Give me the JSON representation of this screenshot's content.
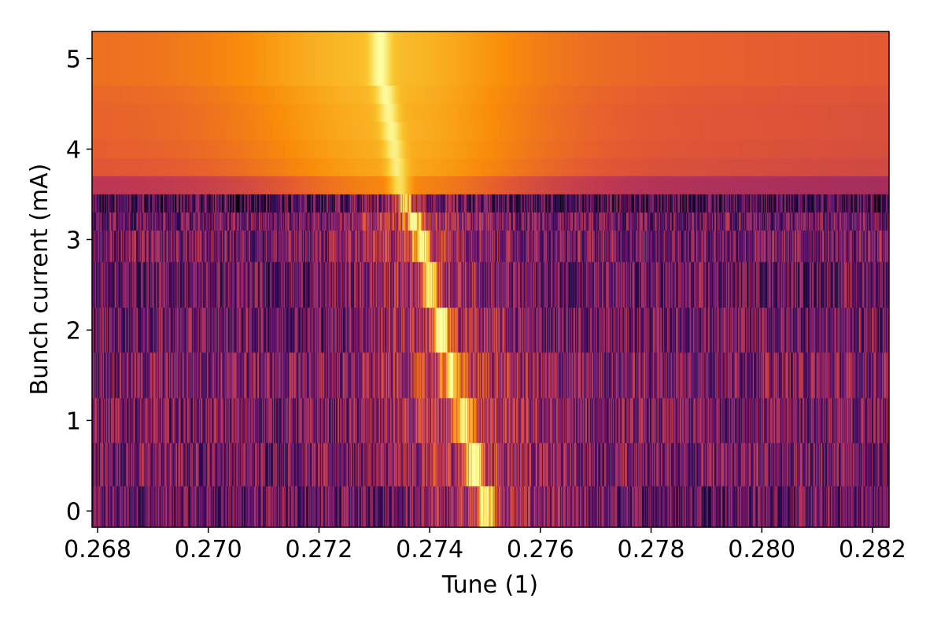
{
  "chart_data": {
    "type": "heatmap",
    "title": "",
    "xlabel": "Tune (1)",
    "ylabel": "Bunch current (mA)",
    "xlim": [
      0.2679,
      0.2823
    ],
    "ylim": [
      -0.18,
      5.3
    ],
    "x_ticks": [
      {
        "value": 0.268,
        "label": "0.268"
      },
      {
        "value": 0.27,
        "label": "0.270"
      },
      {
        "value": 0.272,
        "label": "0.272"
      },
      {
        "value": 0.274,
        "label": "0.274"
      },
      {
        "value": 0.276,
        "label": "0.276"
      },
      {
        "value": 0.278,
        "label": "0.278"
      },
      {
        "value": 0.28,
        "label": "0.280"
      },
      {
        "value": 0.282,
        "label": "0.282"
      }
    ],
    "y_ticks": [
      {
        "value": 0,
        "label": "0"
      },
      {
        "value": 1,
        "label": "1"
      },
      {
        "value": 2,
        "label": "2"
      },
      {
        "value": 3,
        "label": "3"
      },
      {
        "value": 4,
        "label": "4"
      },
      {
        "value": 5,
        "label": "5"
      }
    ],
    "colormap": "inferno",
    "grid": false,
    "rows": [
      {
        "y0": -0.18,
        "y1": 0.27,
        "peak_tune": 0.275,
        "peak_level": 0.97,
        "background_level": 0.3,
        "noise": 0.45
      },
      {
        "y0": 0.27,
        "y1": 0.75,
        "peak_tune": 0.2748,
        "peak_level": 0.95,
        "background_level": 0.34,
        "noise": 0.45
      },
      {
        "y0": 0.75,
        "y1": 1.25,
        "peak_tune": 0.2746,
        "peak_level": 0.9,
        "background_level": 0.34,
        "noise": 0.45
      },
      {
        "y0": 1.25,
        "y1": 1.75,
        "peak_tune": 0.2744,
        "peak_level": 0.88,
        "background_level": 0.36,
        "noise": 0.45
      },
      {
        "y0": 1.75,
        "y1": 2.25,
        "peak_tune": 0.2742,
        "peak_level": 0.92,
        "background_level": 0.32,
        "noise": 0.45
      },
      {
        "y0": 2.25,
        "y1": 2.75,
        "peak_tune": 0.274,
        "peak_level": 0.88,
        "background_level": 0.3,
        "noise": 0.45
      },
      {
        "y0": 2.75,
        "y1": 3.1,
        "peak_tune": 0.27385,
        "peak_level": 0.92,
        "background_level": 0.34,
        "noise": 0.45
      },
      {
        "y0": 3.1,
        "y1": 3.3,
        "peak_tune": 0.2737,
        "peak_level": 0.9,
        "background_level": 0.32,
        "noise": 0.45
      },
      {
        "y0": 3.3,
        "y1": 3.5,
        "peak_tune": 0.27355,
        "peak_level": 0.8,
        "background_level": 0.22,
        "noise": 0.5
      },
      {
        "y0": 3.5,
        "y1": 3.7,
        "peak_tune": 0.27345,
        "peak_level": 0.93,
        "background_level": 0.5,
        "noise": 0.02
      },
      {
        "y0": 3.7,
        "y1": 3.9,
        "peak_tune": 0.2734,
        "peak_level": 0.96,
        "background_level": 0.62,
        "noise": 0.02
      },
      {
        "y0": 3.9,
        "y1": 4.1,
        "peak_tune": 0.27335,
        "peak_level": 0.97,
        "background_level": 0.64,
        "noise": 0.02
      },
      {
        "y0": 4.1,
        "y1": 4.3,
        "peak_tune": 0.2733,
        "peak_level": 0.98,
        "background_level": 0.65,
        "noise": 0.02
      },
      {
        "y0": 4.3,
        "y1": 4.5,
        "peak_tune": 0.27325,
        "peak_level": 0.98,
        "background_level": 0.65,
        "noise": 0.02
      },
      {
        "y0": 4.5,
        "y1": 4.7,
        "peak_tune": 0.2732,
        "peak_level": 0.99,
        "background_level": 0.66,
        "noise": 0.02
      },
      {
        "y0": 4.7,
        "y1": 5.3,
        "peak_tune": 0.2731,
        "peak_level": 1.0,
        "background_level": 0.68,
        "noise": 0.02
      }
    ]
  }
}
